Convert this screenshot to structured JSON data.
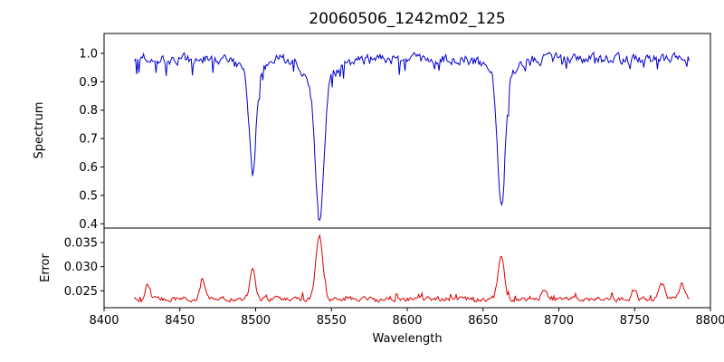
{
  "chart_data": {
    "type": "line",
    "title": "20060506_1242m02_125",
    "xlabel": "Wavelength",
    "xlim": [
      8400,
      8800
    ],
    "x_ticks": [
      8400,
      8450,
      8500,
      8550,
      8600,
      8650,
      8700,
      8750,
      8800
    ],
    "x_tick_labels": [
      "8400",
      "8450",
      "8500",
      "8550",
      "8600",
      "8650",
      "8700",
      "8750",
      "8800"
    ],
    "x_data_range": [
      8420,
      8786
    ],
    "sample_step": 0.75,
    "seed": 12,
    "grid": false,
    "legend": "none",
    "panels": [
      {
        "name": "spectrum",
        "ylabel": "Spectrum",
        "ylim": [
          0.385,
          1.07
        ],
        "y_ticks": [
          0.4,
          0.5,
          0.6,
          0.7,
          0.8,
          0.9,
          1.0
        ],
        "y_tick_labels": [
          "0.4",
          "0.5",
          "0.6",
          "0.7",
          "0.8",
          "0.9",
          "1.0"
        ],
        "color": "#0000cc",
        "baseline": 0.98,
        "noise_sigma": 0.012,
        "spike_prob": 0.05,
        "spike_max": 0.06,
        "absorption_lines": [
          {
            "center": 8498.0,
            "depth": 0.35,
            "core_width": 2.2,
            "wing_depth": 0.05,
            "wing_width": 7
          },
          {
            "center": 8542.1,
            "depth": 0.49,
            "core_width": 2.8,
            "wing_depth": 0.075,
            "wing_width": 10
          },
          {
            "center": 8662.1,
            "depth": 0.45,
            "core_width": 2.4,
            "wing_depth": 0.07,
            "wing_width": 8
          }
        ]
      },
      {
        "name": "error",
        "ylabel": "Error",
        "ylim": [
          0.0215,
          0.038
        ],
        "y_ticks": [
          0.025,
          0.03,
          0.035
        ],
        "y_tick_labels": [
          "0.025",
          "0.030",
          "0.035"
        ],
        "color": "#dd0000",
        "baseline": 0.0233,
        "noise_sigma": 0.0003,
        "spike_prob": 0.06,
        "spike_max": 0.0012,
        "peaks": [
          {
            "center": 8429,
            "height": 0.003,
            "width": 1.6
          },
          {
            "center": 8465,
            "height": 0.0042,
            "width": 1.6
          },
          {
            "center": 8498,
            "height": 0.0068,
            "width": 1.8
          },
          {
            "center": 8542,
            "height": 0.0132,
            "width": 2.2
          },
          {
            "center": 8662,
            "height": 0.0092,
            "width": 2.0
          },
          {
            "center": 8690,
            "height": 0.002,
            "width": 1.5
          },
          {
            "center": 8750,
            "height": 0.0022,
            "width": 1.5
          },
          {
            "center": 8768,
            "height": 0.003,
            "width": 1.8
          },
          {
            "center": 8781,
            "height": 0.0034,
            "width": 1.6
          }
        ]
      }
    ]
  }
}
